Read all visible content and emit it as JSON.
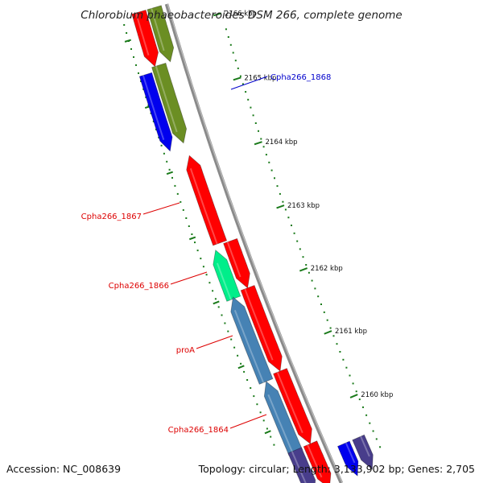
{
  "title": "Chlorobium phaeobacteroides DSM 266, complete genome",
  "footer": {
    "accession": "Accession: NC_008639",
    "topology": "Topology: circular; Length: 3,133,902 bp; Genes: 2,705"
  },
  "colors": {
    "backbone": "#8a8a8a",
    "tick": "#1a7a1a",
    "red_gene": "#ff0000",
    "blue_gene": "#0000ee",
    "olive_gene": "#6b8e23",
    "steel_gene": "#4682b4",
    "cyan_gene": "#00ee8a",
    "slate_gene": "#483d8b",
    "label_red": "#dd0000",
    "label_blue": "#0000cc"
  },
  "scale": {
    "unit": "kbp",
    "ticks": [
      {
        "kbp": 2166,
        "label": "2166 kbp"
      },
      {
        "kbp": 2165,
        "label": "2165 kbp"
      },
      {
        "kbp": 2164,
        "label": "2164 kbp"
      },
      {
        "kbp": 2163,
        "label": "2163 kbp"
      },
      {
        "kbp": 2162,
        "label": "2162 kbp"
      },
      {
        "kbp": 2161,
        "label": "2161 kbp"
      },
      {
        "kbp": 2160,
        "label": "2160 kbp"
      }
    ]
  },
  "gene_labels": [
    {
      "name": "Cpha266_1868",
      "color": "blue"
    },
    {
      "name": "Cpha266_1867",
      "color": "red"
    },
    {
      "name": "Cpha266_1866",
      "color": "red"
    },
    {
      "name": "proA",
      "color": "red"
    },
    {
      "name": "Cpha266_1864",
      "color": "red"
    }
  ]
}
